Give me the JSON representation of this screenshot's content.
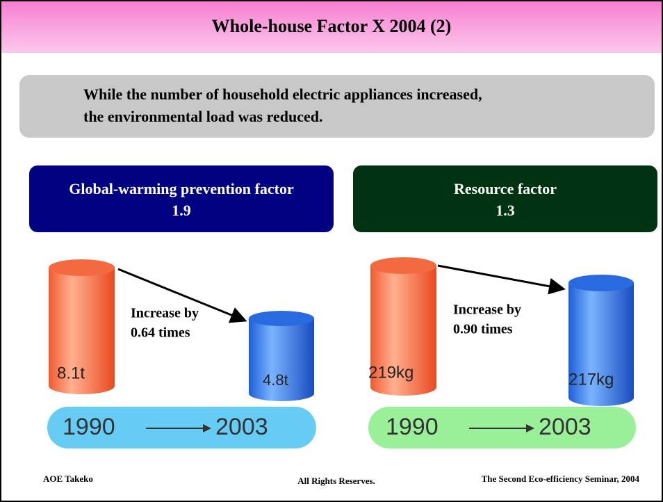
{
  "header": {
    "title": "Whole-house Factor X 2004 (2)"
  },
  "summary": {
    "lines": [
      "While the number of household electric appliances increased,",
      "the environmental load was reduced."
    ]
  },
  "panels": [
    {
      "factor_title": "Global-warming prevention factor",
      "factor_value": "1.9",
      "annotation_lines": [
        "Increase by",
        "0.64 times"
      ],
      "before_label": "8.1t",
      "after_label": "4.8t",
      "start_year": "1990",
      "end_year": "2003"
    },
    {
      "factor_title": "Resource factor",
      "factor_value": "1.3",
      "annotation_lines": [
        "Increase by",
        "0.90 times"
      ],
      "before_label": "219kg",
      "after_label": "217kg",
      "start_year": "1990",
      "end_year": "2003"
    }
  ],
  "footer": {
    "author": "AOE Takeko",
    "rights": "All Rights Reserves.",
    "event": "The Second Eco-efficiency Seminar, 2004"
  }
}
